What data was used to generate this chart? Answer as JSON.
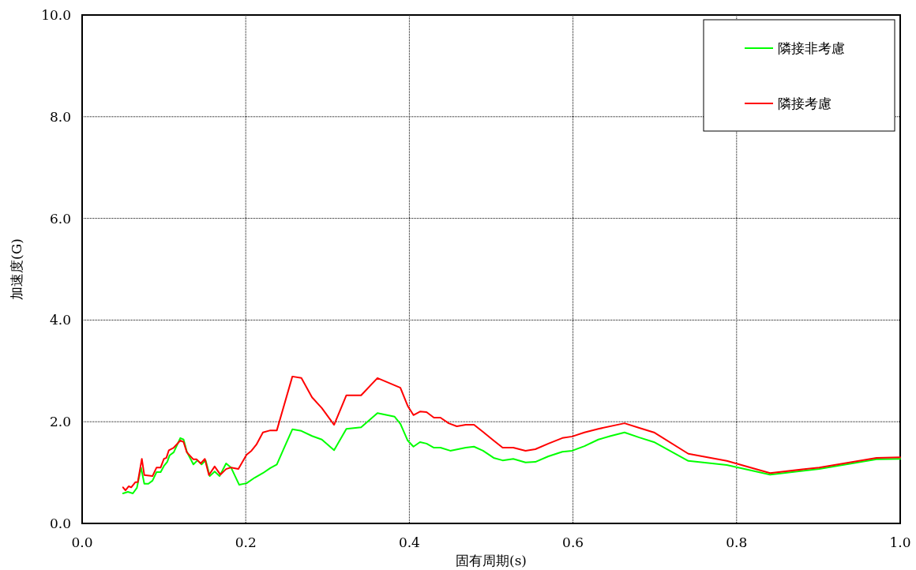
{
  "chart_data": {
    "type": "line",
    "xlabel": "固有周期(s)",
    "ylabel": "加速度(G)",
    "xlim": [
      0,
      1
    ],
    "ylim": [
      0,
      10
    ],
    "xticks": [
      {
        "value": 0,
        "label": "0.0"
      },
      {
        "value": 0.2,
        "label": "0.2"
      },
      {
        "value": 0.4,
        "label": "0.4"
      },
      {
        "value": 0.6,
        "label": "0.6"
      },
      {
        "value": 0.8,
        "label": "0.8"
      },
      {
        "value": 1,
        "label": "1.0"
      }
    ],
    "yticks": [
      {
        "value": 0,
        "label": "0.0"
      },
      {
        "value": 2,
        "label": "2.0"
      },
      {
        "value": 4,
        "label": "4.0"
      },
      {
        "value": 6,
        "label": "6.0"
      },
      {
        "value": 8,
        "label": "8.0"
      },
      {
        "value": 10,
        "label": "10.0"
      }
    ],
    "grid": true,
    "legend": "top right",
    "marker": "none",
    "line_style": "solid",
    "series": [
      {
        "name": "隣接非考慮",
        "color": "#00ff00",
        "x": [
          0.05,
          0.056,
          0.062,
          0.067,
          0.072,
          0.076,
          0.081,
          0.086,
          0.091,
          0.096,
          0.1,
          0.104,
          0.107,
          0.112,
          0.12,
          0.124,
          0.128,
          0.136,
          0.141,
          0.146,
          0.151,
          0.156,
          0.162,
          0.168,
          0.176,
          0.182,
          0.192,
          0.201,
          0.211,
          0.221,
          0.23,
          0.238,
          0.247,
          0.257,
          0.268,
          0.281,
          0.293,
          0.308,
          0.323,
          0.341,
          0.361,
          0.382,
          0.389,
          0.398,
          0.405,
          0.413,
          0.421,
          0.43,
          0.438,
          0.45,
          0.469,
          0.479,
          0.49,
          0.503,
          0.514,
          0.527,
          0.542,
          0.554,
          0.57,
          0.587,
          0.599,
          0.614,
          0.631,
          0.646,
          0.663,
          0.681,
          0.699,
          0.741,
          0.788,
          0.841,
          0.901,
          0.971,
          1.0
        ],
        "values": [
          0.59,
          0.62,
          0.59,
          0.7,
          1.1,
          0.78,
          0.78,
          0.84,
          1.01,
          1.01,
          1.13,
          1.21,
          1.34,
          1.4,
          1.68,
          1.65,
          1.41,
          1.16,
          1.24,
          1.16,
          1.24,
          0.93,
          1.02,
          0.93,
          1.18,
          1.1,
          0.76,
          0.79,
          0.9,
          0.99,
          1.09,
          1.16,
          1.49,
          1.85,
          1.82,
          1.72,
          1.65,
          1.44,
          1.86,
          1.89,
          2.17,
          2.1,
          1.96,
          1.63,
          1.51,
          1.6,
          1.57,
          1.49,
          1.49,
          1.43,
          1.49,
          1.51,
          1.43,
          1.29,
          1.24,
          1.27,
          1.2,
          1.21,
          1.32,
          1.41,
          1.43,
          1.52,
          1.65,
          1.72,
          1.79,
          1.69,
          1.6,
          1.23,
          1.15,
          0.96,
          1.07,
          1.26,
          1.27
        ]
      },
      {
        "name": "隣接考慮",
        "color": "#ff0000",
        "x": [
          0.05,
          0.053,
          0.057,
          0.06,
          0.065,
          0.068,
          0.073,
          0.076,
          0.086,
          0.091,
          0.096,
          0.1,
          0.103,
          0.106,
          0.112,
          0.12,
          0.124,
          0.128,
          0.136,
          0.14,
          0.145,
          0.15,
          0.155,
          0.162,
          0.169,
          0.176,
          0.182,
          0.191,
          0.201,
          0.207,
          0.213,
          0.221,
          0.23,
          0.238,
          0.257,
          0.268,
          0.281,
          0.293,
          0.308,
          0.323,
          0.341,
          0.361,
          0.389,
          0.398,
          0.405,
          0.413,
          0.421,
          0.43,
          0.438,
          0.448,
          0.458,
          0.469,
          0.479,
          0.49,
          0.503,
          0.514,
          0.527,
          0.542,
          0.554,
          0.57,
          0.587,
          0.599,
          0.614,
          0.631,
          0.663,
          0.681,
          0.699,
          0.741,
          0.788,
          0.841,
          0.901,
          0.971,
          1.0
        ],
        "values": [
          0.71,
          0.65,
          0.73,
          0.71,
          0.81,
          0.81,
          1.27,
          0.95,
          0.93,
          1.1,
          1.1,
          1.27,
          1.29,
          1.44,
          1.49,
          1.63,
          1.6,
          1.4,
          1.26,
          1.26,
          1.18,
          1.27,
          0.95,
          1.12,
          0.96,
          1.07,
          1.1,
          1.07,
          1.35,
          1.43,
          1.55,
          1.79,
          1.83,
          1.83,
          2.89,
          2.86,
          2.48,
          2.27,
          1.94,
          2.52,
          2.52,
          2.86,
          2.67,
          2.31,
          2.13,
          2.2,
          2.19,
          2.08,
          2.08,
          1.97,
          1.91,
          1.94,
          1.94,
          1.8,
          1.63,
          1.49,
          1.49,
          1.43,
          1.46,
          1.57,
          1.68,
          1.71,
          1.79,
          1.86,
          1.97,
          1.88,
          1.79,
          1.37,
          1.23,
          0.99,
          1.1,
          1.29,
          1.3
        ]
      }
    ]
  }
}
